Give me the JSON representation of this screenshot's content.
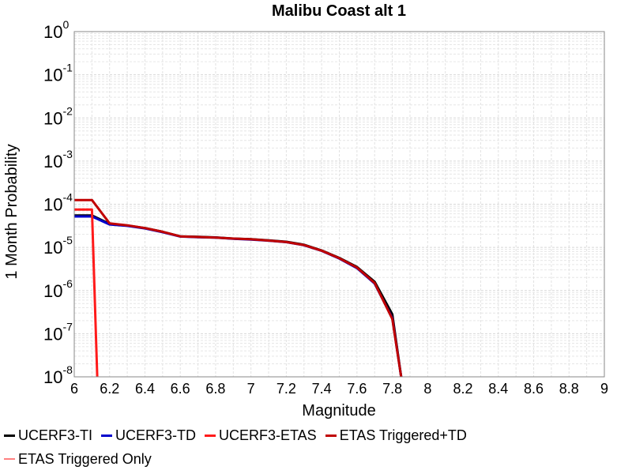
{
  "chart_data": {
    "type": "line",
    "title": "Malibu Coast alt 1",
    "xlabel": "Magnitude",
    "ylabel": "1 Month Probability",
    "xlim": [
      6,
      9
    ],
    "ylim": [
      1e-08,
      1
    ],
    "yscale": "log",
    "grid": true,
    "legend_position": "bottom",
    "x_ticks": [
      "6",
      "6.2",
      "6.4",
      "6.6",
      "6.8",
      "7",
      "7.2",
      "7.4",
      "7.6",
      "7.8",
      "8",
      "8.2",
      "8.4",
      "8.6",
      "8.8",
      "9"
    ],
    "y_tick_exponents": [
      "0",
      "-1",
      "-2",
      "-3",
      "-4",
      "-5",
      "-6",
      "-7",
      "-8"
    ],
    "series": [
      {
        "name": "UCERF3-TI",
        "color": "#000000",
        "x": [
          6.0,
          6.1,
          6.2,
          6.3,
          6.4,
          6.5,
          6.6,
          6.7,
          6.8,
          6.9,
          7.0,
          7.1,
          7.2,
          7.3,
          7.4,
          7.5,
          7.6,
          7.7,
          7.8,
          7.85
        ],
        "y": [
          5.5e-05,
          5.5e-05,
          3.5e-05,
          3.2e-05,
          2.8e-05,
          2.3e-05,
          1.8e-05,
          1.75e-05,
          1.7e-05,
          1.6e-05,
          1.55e-05,
          1.45e-05,
          1.35e-05,
          1.15e-05,
          8.5e-06,
          5.7e-06,
          3.5e-06,
          1.6e-06,
          2.8e-07,
          1e-08
        ]
      },
      {
        "name": "UCERF3-TD",
        "color": "#0000cc",
        "x": [
          6.0,
          6.1,
          6.2,
          6.3,
          6.4,
          6.5,
          6.6,
          6.7,
          6.8,
          6.9,
          7.0,
          7.1,
          7.2,
          7.3,
          7.4,
          7.5,
          7.6,
          7.7,
          7.8,
          7.85
        ],
        "y": [
          5.2e-05,
          5.2e-05,
          3.4e-05,
          3.15e-05,
          2.75e-05,
          2.25e-05,
          1.78e-05,
          1.72e-05,
          1.68e-05,
          1.58e-05,
          1.52e-05,
          1.43e-05,
          1.32e-05,
          1.12e-05,
          8.3e-06,
          5.5e-06,
          3.3e-06,
          1.45e-06,
          2.3e-07,
          1e-08
        ]
      },
      {
        "name": "UCERF3-ETAS",
        "color": "#ff1a1a",
        "x": [
          6.0,
          6.1,
          6.13
        ],
        "y": [
          7.5e-05,
          7.5e-05,
          1e-08
        ]
      },
      {
        "name": "ETAS Triggered+TD",
        "color": "#c00000",
        "x": [
          6.0,
          6.1,
          6.2,
          6.3,
          6.4,
          6.5,
          6.6,
          6.7,
          6.8,
          6.9,
          7.0,
          7.1,
          7.2,
          7.3,
          7.4,
          7.5,
          7.6,
          7.7,
          7.8,
          7.85
        ],
        "y": [
          0.000125,
          0.000125,
          3.6e-05,
          3.25e-05,
          2.8e-05,
          2.3e-05,
          1.8e-05,
          1.74e-05,
          1.69e-05,
          1.6e-05,
          1.54e-05,
          1.44e-05,
          1.33e-05,
          1.13e-05,
          8.4e-06,
          5.6e-06,
          3.4e-06,
          1.5e-06,
          2.2e-07,
          1e-08
        ]
      },
      {
        "name": "ETAS Triggered Only",
        "color": "#ff8080",
        "x": [],
        "y": []
      }
    ]
  }
}
